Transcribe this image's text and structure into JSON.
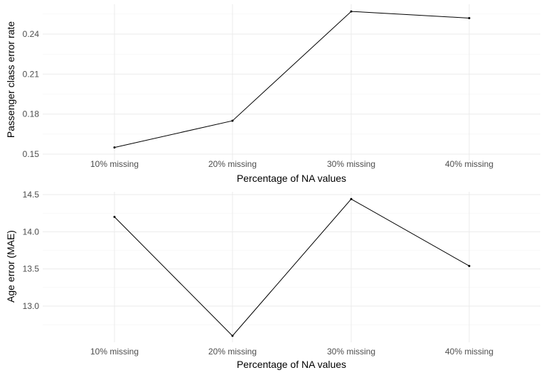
{
  "chart_data": [
    {
      "type": "line",
      "categories": [
        "10% missing",
        "20% missing",
        "30% missing",
        "40% missing"
      ],
      "series": [
        {
          "values": [
            0.155,
            0.175,
            0.257,
            0.252
          ]
        }
      ],
      "xlabel": "Percentage of NA values",
      "ylabel": "Passenger class error rate",
      "ylim": [
        0.15,
        0.257
      ],
      "yticks": [
        "0.15",
        "0.18",
        "0.21",
        "0.24"
      ],
      "grid": true,
      "colors": {
        "line": "#000000",
        "grid": "#ebebeb"
      }
    },
    {
      "type": "line",
      "categories": [
        "10% missing",
        "20% missing",
        "30% missing",
        "40% missing"
      ],
      "series": [
        {
          "values": [
            14.2,
            12.6,
            14.44,
            13.54
          ]
        }
      ],
      "xlabel": "Percentage of NA values",
      "ylabel": "Age error (MAE)",
      "ylim": [
        12.6,
        14.5
      ],
      "yticks": [
        "13.0",
        "13.5",
        "14.0",
        "14.5"
      ],
      "grid": true,
      "colors": {
        "line": "#000000",
        "grid": "#ebebeb"
      }
    }
  ]
}
